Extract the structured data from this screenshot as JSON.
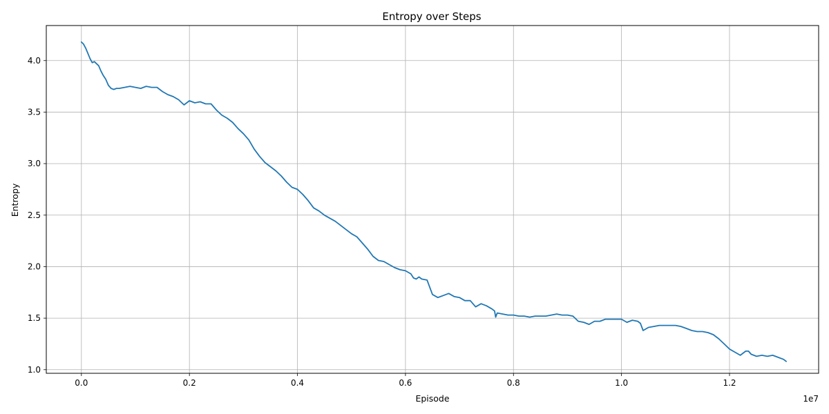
{
  "chart_data": {
    "type": "line",
    "title": "Entropy over Steps",
    "xlabel": "Episode",
    "ylabel": "Entropy",
    "x_offset_label": "1e7",
    "xlim": [
      -0.065,
      1.365
    ],
    "ylim": [
      0.965,
      4.34
    ],
    "x_ticks": [
      0.0,
      0.2,
      0.4,
      0.6,
      0.8,
      1.0,
      1.2
    ],
    "x_tick_labels": [
      "0.0",
      "0.2",
      "0.4",
      "0.6",
      "0.8",
      "1.0",
      "1.2"
    ],
    "y_ticks": [
      1.0,
      1.5,
      2.0,
      2.5,
      3.0,
      3.5,
      4.0
    ],
    "y_tick_labels": [
      "1.0",
      "1.5",
      "2.0",
      "2.5",
      "3.0",
      "3.5",
      "4.0"
    ],
    "grid": true,
    "line_color": "#1f77b4",
    "series": [
      {
        "x": [
          0.0,
          0.004,
          0.008,
          0.012,
          0.016,
          0.02,
          0.024,
          0.028,
          0.032,
          0.036,
          0.04,
          0.045,
          0.05,
          0.055,
          0.06,
          0.065,
          0.07,
          0.08,
          0.09,
          0.1,
          0.11,
          0.12,
          0.13,
          0.14,
          0.15,
          0.16,
          0.17,
          0.18,
          0.19,
          0.2,
          0.21,
          0.22,
          0.23,
          0.24,
          0.25,
          0.26,
          0.27,
          0.28,
          0.29,
          0.3,
          0.31,
          0.32,
          0.33,
          0.34,
          0.35,
          0.36,
          0.37,
          0.38,
          0.39,
          0.4,
          0.41,
          0.42,
          0.43,
          0.44,
          0.45,
          0.46,
          0.47,
          0.48,
          0.49,
          0.5,
          0.51,
          0.52,
          0.53,
          0.54,
          0.55,
          0.56,
          0.57,
          0.58,
          0.59,
          0.6,
          0.61,
          0.615,
          0.62,
          0.625,
          0.63,
          0.64,
          0.65,
          0.66,
          0.67,
          0.68,
          0.69,
          0.7,
          0.71,
          0.72,
          0.73,
          0.74,
          0.75,
          0.76,
          0.765,
          0.767,
          0.77,
          0.78,
          0.79,
          0.8,
          0.81,
          0.82,
          0.83,
          0.84,
          0.85,
          0.86,
          0.87,
          0.88,
          0.89,
          0.9,
          0.91,
          0.92,
          0.93,
          0.94,
          0.95,
          0.96,
          0.97,
          0.98,
          0.99,
          1.0,
          1.01,
          1.02,
          1.03,
          1.035,
          1.04,
          1.05,
          1.06,
          1.07,
          1.08,
          1.09,
          1.1,
          1.11,
          1.12,
          1.13,
          1.14,
          1.15,
          1.16,
          1.17,
          1.18,
          1.19,
          1.2,
          1.21,
          1.22,
          1.23,
          1.235,
          1.24,
          1.25,
          1.26,
          1.27,
          1.28,
          1.29,
          1.3,
          1.305
        ],
        "y": [
          4.18,
          4.16,
          4.12,
          4.07,
          4.02,
          3.98,
          3.99,
          3.97,
          3.95,
          3.9,
          3.86,
          3.82,
          3.76,
          3.73,
          3.72,
          3.73,
          3.73,
          3.74,
          3.75,
          3.74,
          3.73,
          3.75,
          3.74,
          3.74,
          3.7,
          3.67,
          3.65,
          3.62,
          3.57,
          3.61,
          3.59,
          3.6,
          3.58,
          3.58,
          3.52,
          3.47,
          3.44,
          3.4,
          3.34,
          3.29,
          3.23,
          3.14,
          3.07,
          3.01,
          2.97,
          2.93,
          2.88,
          2.82,
          2.77,
          2.75,
          2.7,
          2.64,
          2.57,
          2.54,
          2.5,
          2.47,
          2.44,
          2.4,
          2.36,
          2.32,
          2.29,
          2.23,
          2.17,
          2.1,
          2.06,
          2.05,
          2.02,
          1.99,
          1.97,
          1.96,
          1.93,
          1.89,
          1.88,
          1.9,
          1.88,
          1.87,
          1.73,
          1.7,
          1.72,
          1.74,
          1.71,
          1.7,
          1.67,
          1.67,
          1.61,
          1.64,
          1.62,
          1.59,
          1.57,
          1.51,
          1.55,
          1.54,
          1.53,
          1.53,
          1.52,
          1.52,
          1.51,
          1.52,
          1.52,
          1.52,
          1.53,
          1.54,
          1.53,
          1.53,
          1.52,
          1.47,
          1.46,
          1.44,
          1.47,
          1.47,
          1.49,
          1.49,
          1.49,
          1.49,
          1.46,
          1.48,
          1.47,
          1.45,
          1.38,
          1.41,
          1.42,
          1.43,
          1.43,
          1.43,
          1.43,
          1.42,
          1.4,
          1.38,
          1.37,
          1.37,
          1.36,
          1.34,
          1.3,
          1.25,
          1.2,
          1.17,
          1.14,
          1.18,
          1.18,
          1.15,
          1.13,
          1.14,
          1.13,
          1.14,
          1.12,
          1.1,
          1.08
        ]
      }
    ]
  }
}
